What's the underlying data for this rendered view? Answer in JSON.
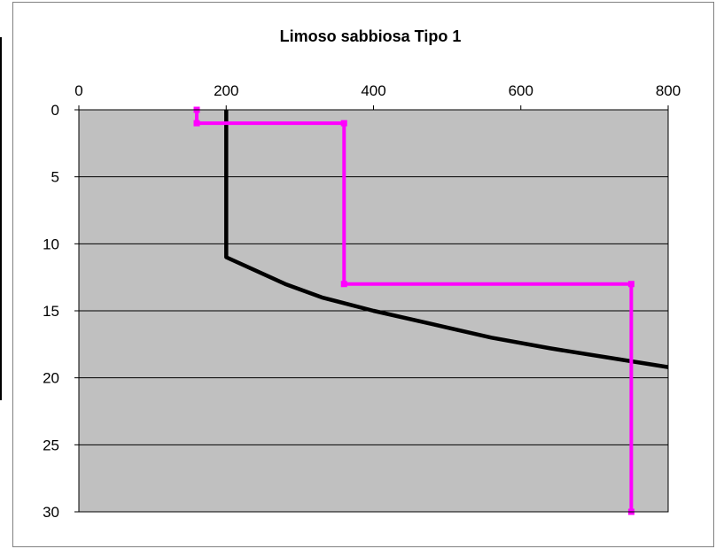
{
  "chart_data": {
    "type": "line",
    "title": "Limoso sabbiosa Tipo 1",
    "xlabel": "",
    "ylabel": "",
    "x_axis_position": "top",
    "y_axis_inverted": true,
    "xlim": [
      0,
      800
    ],
    "ylim": [
      0,
      30
    ],
    "x_ticks": [
      0,
      200,
      400,
      600,
      800
    ],
    "y_ticks": [
      0,
      5,
      10,
      15,
      20,
      25,
      30
    ],
    "grid": "horizontal",
    "plot_background": "#c0c0c0",
    "legend": "none",
    "series": [
      {
        "color": "#000000",
        "x": [
          200,
          200,
          240,
          280,
          330,
          400,
          480,
          560,
          640,
          720,
          800
        ],
        "y": [
          0,
          11,
          12,
          13,
          14,
          15,
          16,
          17,
          17.8,
          18.5,
          19.2
        ]
      },
      {
        "color": "#ff00ff",
        "markers": true,
        "x": [
          160,
          160,
          360,
          360,
          750,
          750
        ],
        "y": [
          0,
          1,
          1,
          13,
          13,
          30
        ]
      }
    ]
  }
}
